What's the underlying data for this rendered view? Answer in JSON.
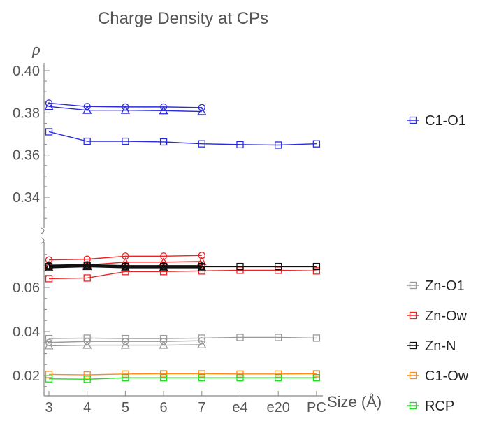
{
  "chart_data": {
    "type": "line",
    "title": "Charge Density at CPs",
    "xlabel": "Size (Å)",
    "ylabel": "ρ",
    "categories": [
      "3",
      "4",
      "5",
      "6",
      "7",
      "e4",
      "e20",
      "PC"
    ],
    "axis_break": true,
    "upper_axis": {
      "ylim": [
        0.32,
        0.4
      ],
      "ticks": [
        "0.34",
        "0.36",
        "0.38",
        "0.40"
      ]
    },
    "lower_axis": {
      "ylim": [
        0.01,
        0.075
      ],
      "ticks": [
        "0.02",
        "0.04",
        "0.06"
      ]
    },
    "legend_placement": "right",
    "series": [
      {
        "name": "C1-O1",
        "color": "#2b2bdd",
        "marker": "square",
        "panel": "upper",
        "legend": true,
        "values": [
          0.371,
          0.3665,
          0.3665,
          0.3662,
          0.3653,
          0.3649,
          0.3647,
          0.3653
        ]
      },
      {
        "color": "#2b2bdd",
        "marker": "circle",
        "panel": "upper",
        "legend": false,
        "values": [
          0.3846,
          0.383,
          0.3828,
          0.3828,
          0.3825,
          null,
          null,
          null
        ]
      },
      {
        "color": "#2b2bdd",
        "marker": "triangle",
        "panel": "upper",
        "legend": false,
        "values": [
          0.383,
          0.3812,
          0.3812,
          0.381,
          0.3806,
          null,
          null,
          null
        ]
      },
      {
        "name": "Zn-O1",
        "color": "#999999",
        "marker": "square",
        "panel": "lower",
        "legend": true,
        "values": [
          0.0368,
          0.037,
          0.0368,
          0.0368,
          0.037,
          0.0373,
          0.0373,
          0.037
        ]
      },
      {
        "color": "#999999",
        "marker": "circle",
        "panel": "lower",
        "legend": false,
        "values": [
          0.035,
          0.0355,
          0.0355,
          0.0355,
          0.0358,
          null,
          null,
          null
        ]
      },
      {
        "color": "#999999",
        "marker": "triangle",
        "panel": "lower",
        "legend": false,
        "values": [
          0.0335,
          0.0338,
          0.0338,
          0.0338,
          0.034,
          null,
          null,
          null
        ]
      },
      {
        "name": "Zn-Ow",
        "color": "#ee2222",
        "marker": "square",
        "panel": "lower",
        "legend": true,
        "values": [
          0.064,
          0.0643,
          0.0672,
          0.0672,
          0.0675,
          0.0678,
          0.0678,
          0.0675
        ]
      },
      {
        "color": "#ee2222",
        "marker": "circle",
        "panel": "lower",
        "legend": false,
        "values": [
          0.0725,
          0.0728,
          0.0742,
          0.0742,
          0.0745,
          null,
          null,
          null
        ]
      },
      {
        "color": "#ee2222",
        "marker": "triangle",
        "panel": "lower",
        "legend": false,
        "values": [
          0.07,
          0.0702,
          0.0715,
          0.0715,
          0.0718,
          null,
          null,
          null
        ]
      },
      {
        "name": "Zn-N",
        "color": "#111111",
        "marker": "square",
        "panel": "lower",
        "legend": true,
        "values": [
          0.0695,
          0.07,
          0.0695,
          0.0695,
          0.0695,
          0.0695,
          0.0695,
          0.0695
        ]
      },
      {
        "color": "#111111",
        "marker": "circle",
        "panel": "lower",
        "legend": false,
        "values": [
          0.07,
          0.0703,
          0.0698,
          0.0698,
          0.0698,
          null,
          null,
          null
        ]
      },
      {
        "color": "#111111",
        "marker": "triangle",
        "panel": "lower",
        "legend": false,
        "values": [
          0.069,
          0.0695,
          0.069,
          0.069,
          0.069,
          null,
          null,
          null
        ]
      },
      {
        "name": "C1-Ow",
        "color": "#ff8c1a",
        "marker": "square",
        "panel": "lower",
        "legend": true,
        "values": [
          0.0205,
          0.0203,
          0.0207,
          0.0208,
          0.0208,
          0.0207,
          0.0207,
          0.0208
        ]
      },
      {
        "name": "RCP",
        "color": "#22dd22",
        "marker": "square",
        "panel": "lower",
        "legend": true,
        "values": [
          0.0185,
          0.0183,
          0.019,
          0.019,
          0.019,
          0.019,
          0.019,
          0.019
        ]
      }
    ]
  }
}
